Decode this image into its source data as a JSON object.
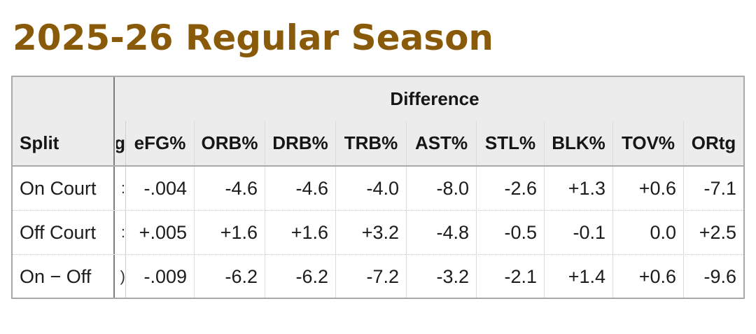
{
  "page_title": "2025-26 Regular Season",
  "table": {
    "group_header": "Difference",
    "split_header": "Split",
    "hidden_glyphs": {
      "header": "g",
      "rows": [
        ":",
        ":",
        ")"
      ]
    },
    "columns": [
      "eFG%",
      "ORB%",
      "DRB%",
      "TRB%",
      "AST%",
      "STL%",
      "BLK%",
      "TOV%",
      "ORtg"
    ],
    "rows": [
      {
        "split": "On Court",
        "values": [
          "-.004",
          "-4.6",
          "-4.6",
          "-4.0",
          "-8.0",
          "-2.6",
          "+1.3",
          "+0.6",
          "-7.1"
        ]
      },
      {
        "split": "Off Court",
        "values": [
          "+.005",
          "+1.6",
          "+1.6",
          "+3.2",
          "-4.8",
          "-0.5",
          "-0.1",
          "0.0",
          "+2.5"
        ]
      },
      {
        "split": "On − Off",
        "values": [
          "-.009",
          "-6.2",
          "-6.2",
          "-7.2",
          "-3.2",
          "-2.1",
          "+1.4",
          "+0.6",
          "-9.6"
        ]
      }
    ]
  },
  "colors": {
    "title": "#8a5a0b",
    "header_bg": "#ececec",
    "border": "#a9a9a9"
  }
}
